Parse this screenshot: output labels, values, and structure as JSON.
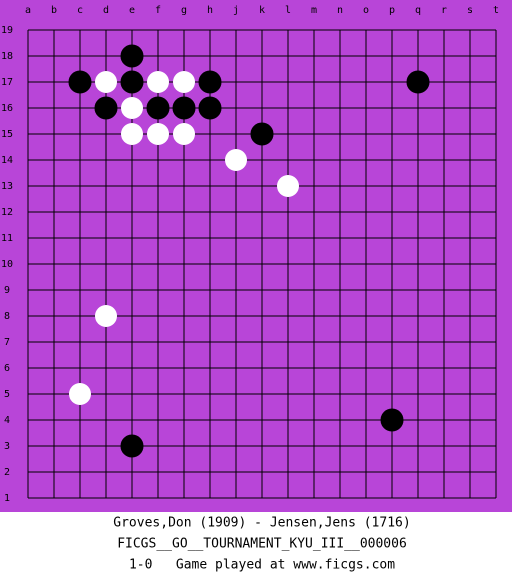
{
  "board": {
    "columns": [
      "a",
      "b",
      "c",
      "d",
      "e",
      "f",
      "g",
      "h",
      "j",
      "k",
      "l",
      "m",
      "n",
      "o",
      "p",
      "q",
      "r",
      "s",
      "t"
    ],
    "rows": [
      19,
      18,
      17,
      16,
      15,
      14,
      13,
      12,
      11,
      10,
      9,
      8,
      7,
      6,
      5,
      4,
      3,
      2,
      1
    ],
    "stones": [
      {
        "color": "black",
        "col": "e",
        "row": 18
      },
      {
        "color": "black",
        "col": "c",
        "row": 17
      },
      {
        "color": "white",
        "col": "d",
        "row": 17
      },
      {
        "color": "black",
        "col": "e",
        "row": 17
      },
      {
        "color": "white",
        "col": "f",
        "row": 17
      },
      {
        "color": "white",
        "col": "g",
        "row": 17
      },
      {
        "color": "black",
        "col": "h",
        "row": 17
      },
      {
        "color": "black",
        "col": "q",
        "row": 17
      },
      {
        "color": "black",
        "col": "d",
        "row": 16
      },
      {
        "color": "white",
        "col": "e",
        "row": 16
      },
      {
        "color": "black",
        "col": "f",
        "row": 16
      },
      {
        "color": "black",
        "col": "g",
        "row": 16
      },
      {
        "color": "black",
        "col": "h",
        "row": 16
      },
      {
        "color": "white",
        "col": "e",
        "row": 15
      },
      {
        "color": "white",
        "col": "f",
        "row": 15
      },
      {
        "color": "white",
        "col": "g",
        "row": 15
      },
      {
        "color": "black",
        "col": "k",
        "row": 15
      },
      {
        "color": "white",
        "col": "j",
        "row": 14
      },
      {
        "color": "white",
        "col": "l",
        "row": 13
      },
      {
        "color": "white",
        "col": "d",
        "row": 8
      },
      {
        "color": "white",
        "col": "c",
        "row": 5
      },
      {
        "color": "black",
        "col": "p",
        "row": 4
      },
      {
        "color": "black",
        "col": "e",
        "row": 3
      }
    ]
  },
  "footer": {
    "players": "Groves,Don (1909) - Jensen,Jens (1716)",
    "event": "FICGS__GO__TOURNAMENT_KYU_III__000006",
    "result": "1-0   Game played at www.ficgs.com"
  }
}
